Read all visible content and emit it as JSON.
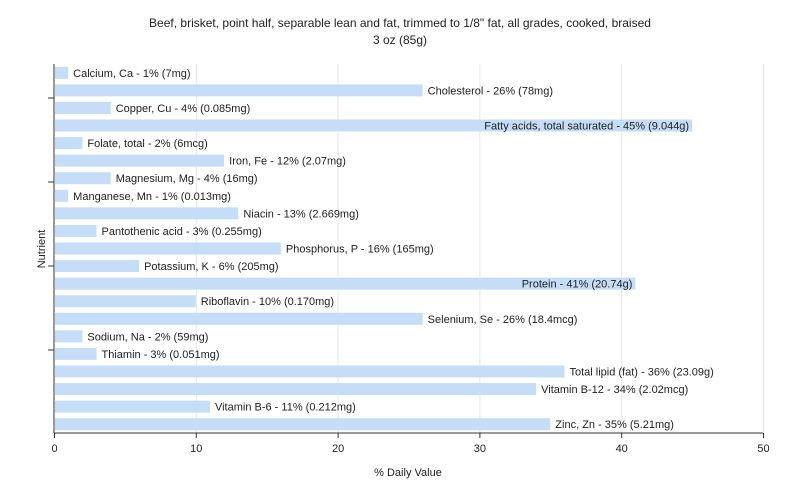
{
  "chart_data": {
    "type": "bar",
    "orientation": "horizontal",
    "title": "Beef, brisket, point half, separable lean and fat, trimmed to 1/8\" fat, all grades, cooked, braised",
    "subtitle": "3 oz (85g)",
    "xlabel": "% Daily Value",
    "ylabel": "Nutrient",
    "xlim": [
      0,
      50
    ],
    "xticks": [
      "0",
      "10",
      "20",
      "30",
      "40",
      "50"
    ],
    "grid": true,
    "bar_color": "#c6ddf8",
    "categories": [
      "Calcium, Ca",
      "Cholesterol",
      "Copper, Cu",
      "Fatty acids, total saturated",
      "Folate, total",
      "Iron, Fe",
      "Magnesium, Mg",
      "Manganese, Mn",
      "Niacin",
      "Pantothenic acid",
      "Phosphorus, P",
      "Potassium, K",
      "Protein",
      "Riboflavin",
      "Selenium, Se",
      "Sodium, Na",
      "Thiamin",
      "Total lipid (fat)",
      "Vitamin B-12",
      "Vitamin B-6",
      "Zinc, Zn"
    ],
    "values": [
      1,
      26,
      4,
      45,
      2,
      12,
      4,
      1,
      13,
      3,
      16,
      6,
      41,
      10,
      26,
      2,
      3,
      36,
      34,
      11,
      35
    ],
    "labels": [
      "Calcium, Ca - 1% (7mg)",
      "Cholesterol - 26% (78mg)",
      "Copper, Cu - 4% (0.085mg)",
      "Fatty acids, total saturated - 45% (9.044g)",
      "Folate, total - 2% (6mcg)",
      "Iron, Fe - 12% (2.07mg)",
      "Magnesium, Mg - 4% (16mg)",
      "Manganese, Mn - 1% (0.013mg)",
      "Niacin - 13% (2.669mg)",
      "Pantothenic acid - 3% (0.255mg)",
      "Phosphorus, P - 16% (165mg)",
      "Potassium, K - 6% (205mg)",
      "Protein - 41% (20.74g)",
      "Riboflavin - 10% (0.170mg)",
      "Selenium, Se - 26% (18.4mcg)",
      "Sodium, Na - 2% (59mg)",
      "Thiamin - 3% (0.051mg)",
      "Total lipid (fat) - 36% (23.09g)",
      "Vitamin B-12 - 34% (2.02mcg)",
      "Vitamin B-6 - 11% (0.212mg)",
      "Zinc, Zn - 35% (5.21mg)"
    ]
  }
}
